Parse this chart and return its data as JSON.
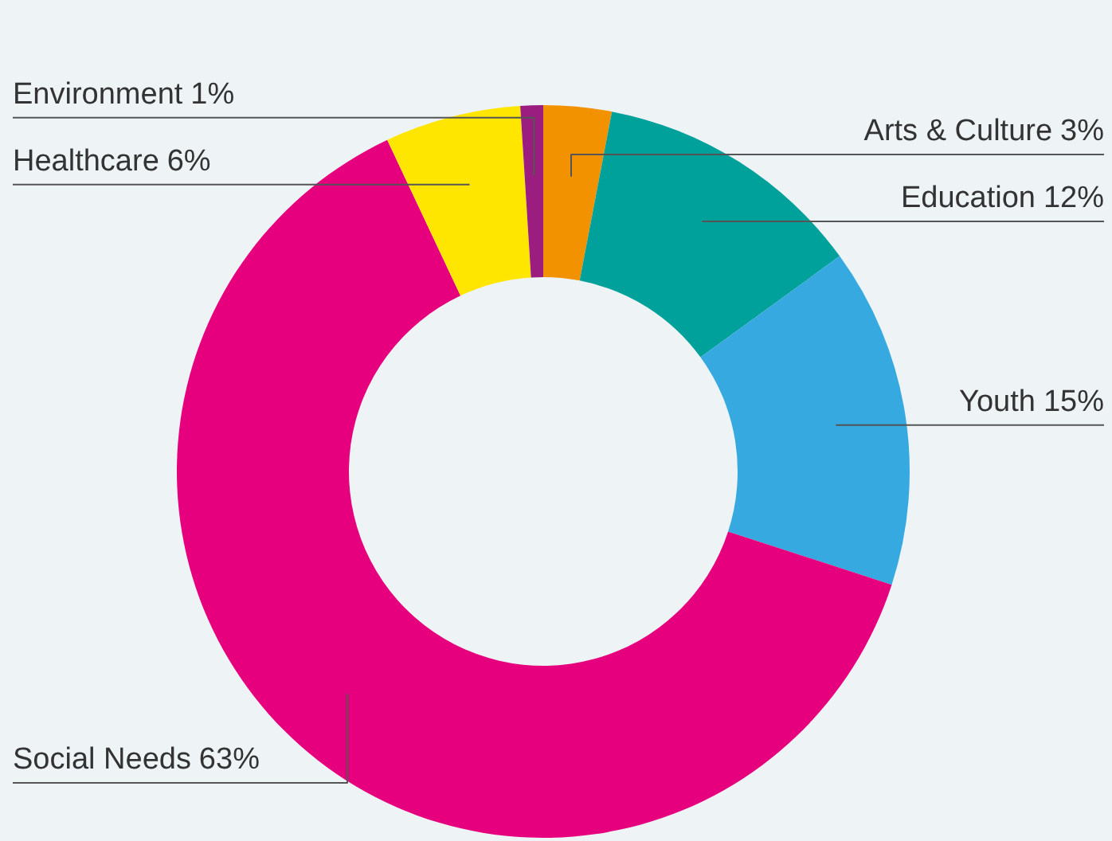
{
  "chart_data": {
    "type": "donut",
    "categories": [
      "Arts & Culture",
      "Education",
      "Youth",
      "Social Needs",
      "Healthcare",
      "Environment"
    ],
    "values": [
      3,
      12,
      15,
      63,
      6,
      1
    ],
    "colors": [
      "#f39200",
      "#00a19a",
      "#36a9e1",
      "#e6007e",
      "#ffe600",
      "#9b1d7f"
    ],
    "value_labels": [
      "3%",
      "12%",
      "15%",
      "63%",
      "6%",
      "1%"
    ]
  }
}
